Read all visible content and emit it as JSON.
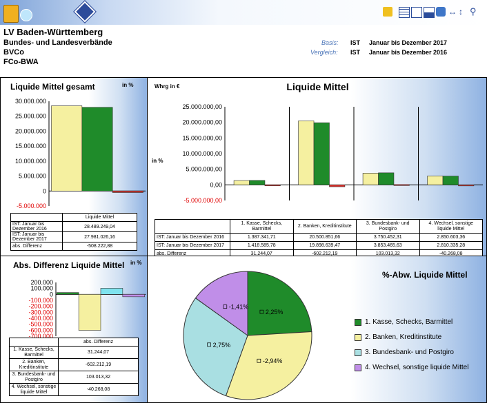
{
  "header": {
    "title": "LV Baden-Württemberg",
    "line1": "Bundes- und Landesverbände",
    "line2": "BVCo",
    "line3": "FCo-BWA",
    "basis_label": "Basis:",
    "basis_type": "IST",
    "basis_period": "Januar bis Dezember 2017",
    "vergleich_label": "Vergleich:",
    "vergleich_type": "IST",
    "vergleich_period": "Januar bis Dezember 2016"
  },
  "colors": {
    "series2016": "#f5f0a0",
    "series2017": "#1f8b2a",
    "diff": "#e0302a"
  },
  "panel1": {
    "title": "Liquide Mittel gesamt",
    "unit": "in %",
    "chart_data": {
      "type": "bar",
      "categories": [
        "Liquide Mittel"
      ],
      "series": [
        {
          "name": "IST: Januar bis Dezember 2016",
          "values": [
            28489249.04
          ]
        },
        {
          "name": "IST: Januar bis Dezember 2017",
          "values": [
            27981026.16
          ]
        },
        {
          "name": "abs. Differenz",
          "values": [
            -508222.88
          ]
        }
      ],
      "ylim": [
        -5000000,
        30000000
      ],
      "yticks": [
        "30.000.000",
        "25.000.000",
        "20.000.000",
        "15.000.000",
        "10.000.000",
        "5.000.000",
        "0",
        "-5.000.000"
      ]
    },
    "table": [
      {
        "label": "IST: Januar bis Dezember 2016",
        "value": "28.489.249,04"
      },
      {
        "label": "IST: Januar bis Dezember 2017",
        "value": "27.981.026,16"
      },
      {
        "label": "abs. Differenz",
        "value": "-508.222,88"
      }
    ]
  },
  "panel2": {
    "title": "Liquide Mittel",
    "currency": "Whrg in €",
    "unit": "in %",
    "chart_data": {
      "type": "bar",
      "categories": [
        "1. Kasse, Schecks, Barmittel",
        "2. Banken, Kreditinstitute",
        "3. Bundesbank- und Postgiro",
        "4. Wechsel, sonstige liquide Mittel"
      ],
      "series": [
        {
          "name": "IST: Januar bis Dezember 2016",
          "values": [
            1387341.71,
            20500851.66,
            3750452.31,
            2850603.36
          ]
        },
        {
          "name": "IST: Januar bis Dezember 2017",
          "values": [
            1418585.78,
            19898639.47,
            3853465.63,
            2810335.28
          ]
        },
        {
          "name": "abs. Differenz",
          "values": [
            31244.07,
            -602212.19,
            103013.32,
            -40268.08
          ]
        }
      ],
      "ylim": [
        -5000000,
        25000000
      ],
      "yticks": [
        "25.000.000,00",
        "20.000.000,00",
        "15.000.000,00",
        "10.000.000,00",
        "5.000.000,00",
        "0,00",
        "-5.000.000,00"
      ]
    },
    "table": {
      "rows": [
        {
          "label": "IST: Januar bis Dezember 2016",
          "values": [
            "1.387.341,71",
            "20.500.851,66",
            "3.750.452,31",
            "2.850.603,36"
          ]
        },
        {
          "label": "IST: Januar bis Dezember 2017",
          "values": [
            "1.418.585,78",
            "19.898.639,47",
            "3.853.465,63",
            "2.810.335,28"
          ]
        },
        {
          "label": "abs. Differenz",
          "values": [
            "31.244,07",
            "-602.212,19",
            "103.013,32",
            "-40.268,08"
          ]
        }
      ]
    }
  },
  "panel3": {
    "title": "Abs. Differenz Liquide Mittel",
    "unit": "in %",
    "chart_data": {
      "type": "bar",
      "categories": [
        "abs. Differenz"
      ],
      "series": [
        {
          "name": "1. Kasse, Schecks, Barmittel",
          "values": [
            31244.07
          ]
        },
        {
          "name": "2. Banken, Kreditinstitute",
          "values": [
            -602212.19
          ]
        },
        {
          "name": "3. Bundesbank- und Postgiro",
          "values": [
            103013.32
          ]
        },
        {
          "name": "4. Wechsel, sonstige liquide Mittel",
          "values": [
            -40268.08
          ]
        }
      ],
      "ylim": [
        -700000,
        200000
      ],
      "yticks": [
        "200.000",
        "100.000",
        "0",
        "-100.000",
        "-200.000",
        "-300.000",
        "-400.000",
        "-500.000",
        "-600.000",
        "-700.000"
      ]
    },
    "colors": [
      "#1f8b2a",
      "#f5f0a0",
      "#7fe3ee",
      "#c08ee8"
    ],
    "table": [
      {
        "label": "1. Kasse, Schecks, Barmittel",
        "value": "31.244,07"
      },
      {
        "label": "2. Banken, Kreditinstitute",
        "value": "-602.212,19"
      },
      {
        "label": "3. Bundesbank- und Postgiro",
        "value": "103.013,32"
      },
      {
        "label": "4. Wechsel, sonstige liquide Mittel",
        "value": "-40.268,08"
      }
    ]
  },
  "panel4": {
    "title": "%-Abw. Liquide Mittel",
    "chart_data": {
      "type": "pie",
      "labels": [
        "1. Kasse, Schecks, Barmittel",
        "2. Banken, Kreditinstitute",
        "3. Bundesbank- und Postgiro",
        "4. Wechsel, sonstige liquide Mittel"
      ],
      "values": [
        2.25,
        -2.94,
        2.75,
        -1.41
      ],
      "slice_labels": [
        "2,25%",
        "-2,94%",
        "2,75%",
        "-1,41%"
      ],
      "legend": "right"
    },
    "colors": [
      "#1f8b2a",
      "#f5f0a0",
      "#a9dfe2",
      "#c08ee8"
    ]
  }
}
